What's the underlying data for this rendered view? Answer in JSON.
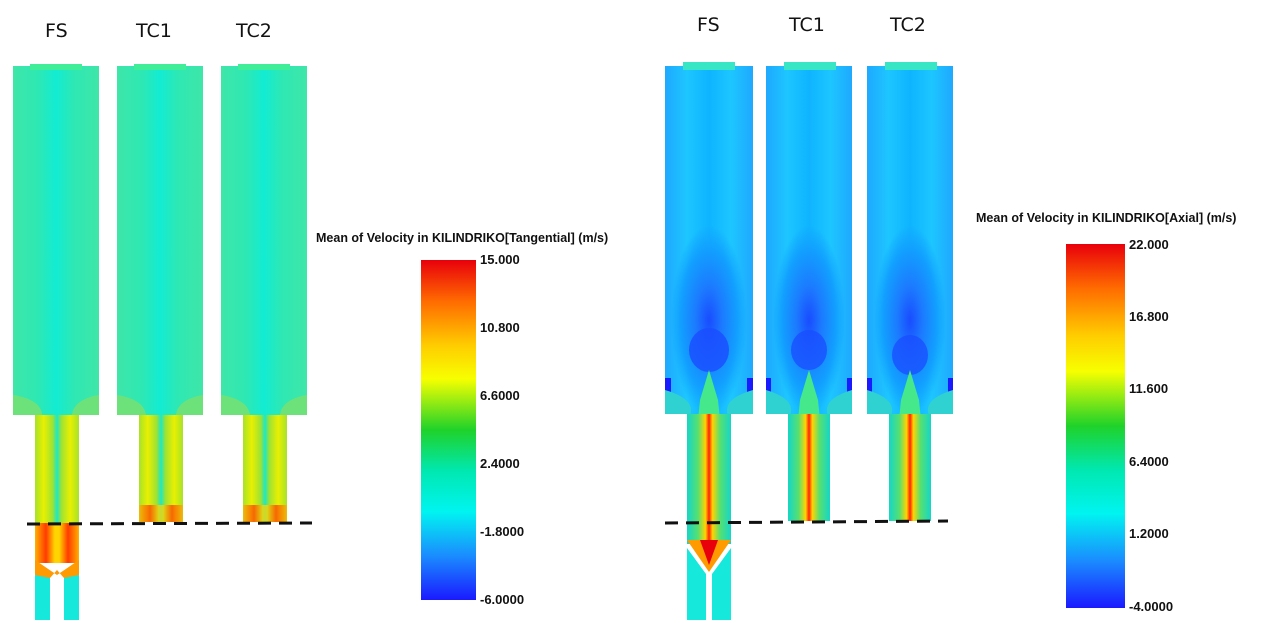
{
  "left_panel": {
    "columns": [
      "FS",
      "TC1",
      "TC2"
    ],
    "colorbar": {
      "title": "Mean of Velocity in KILINDRIKO[Tangential] (m/s)",
      "ticks": [
        "15.000",
        "10.800",
        "6.6000",
        "2.4000",
        "-1.8000",
        "-6.0000"
      ]
    }
  },
  "right_panel": {
    "columns": [
      "FS",
      "TC1",
      "TC2"
    ],
    "colorbar": {
      "title": "Mean of Velocity in KILINDRIKO[Axial] (m/s)",
      "ticks": [
        "22.000",
        "16.800",
        "11.600",
        "6.4000",
        "1.2000",
        "-4.0000"
      ]
    }
  },
  "colors": {
    "red": "#e8000b",
    "orange": "#ff8a00",
    "yellow": "#f7ff00",
    "green": "#1fd22a",
    "cyan": "#00f4f0",
    "blue": "#1a6fff",
    "dark_blue": "#1a1aff"
  }
}
